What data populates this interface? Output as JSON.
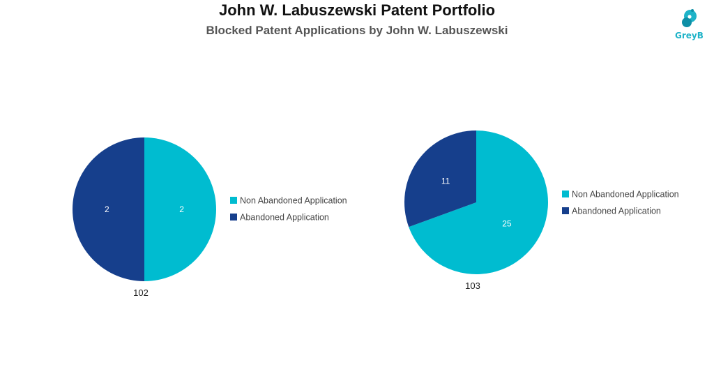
{
  "header": {
    "title": "John W. Labuszewski Patent Portfolio",
    "subtitle": "Blocked Patent Applications by John W. Labuszewski"
  },
  "logo": {
    "text": "GreyB",
    "icon": "greyb-logo-icon",
    "color": "#1fb3c8"
  },
  "colors": {
    "non_abandoned": "#00bcd0",
    "abandoned": "#163f8c"
  },
  "chart_data": [
    {
      "type": "pie",
      "label": "102",
      "slices": [
        {
          "name": "Non Abandoned Application",
          "value": 2
        },
        {
          "name": "Abandoned Application",
          "value": 2
        }
      ],
      "legend": [
        "Non Abandoned Application",
        "Abandoned Application"
      ],
      "legend_position": "right"
    },
    {
      "type": "pie",
      "label": "103",
      "slices": [
        {
          "name": "Non Abandoned Application",
          "value": 25
        },
        {
          "name": "Abandoned Application",
          "value": 11
        }
      ],
      "legend": [
        "Non Abandoned Application",
        "Abandoned Application"
      ],
      "legend_position": "right"
    }
  ]
}
